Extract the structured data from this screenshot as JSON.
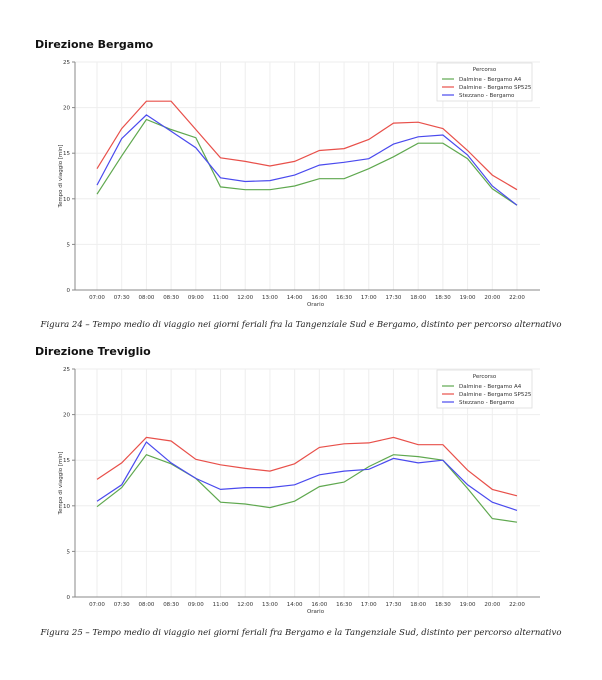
{
  "sections": [
    {
      "title": "Direzione Bergamo",
      "caption": "Figura 24 – Tempo medio di viaggio nei giorni feriali fra la Tangenziale Sud e Bergamo, distinto per percorso alternativo"
    },
    {
      "title": "Direzione Treviglio",
      "caption": "Figura 25 – Tempo medio di viaggio nei giorni feriali fra Bergamo e la Tangenziale Sud, distinto per percorso alternativo"
    }
  ],
  "chart_data": [
    {
      "type": "line",
      "title": "Direzione Bergamo",
      "xlabel": "Orario",
      "ylabel": "Tempo di viaggio [min]",
      "ylim": [
        0,
        25
      ],
      "yticks": [
        0,
        5,
        10,
        15,
        20,
        25
      ],
      "grid": true,
      "legend_title": "Percorso",
      "legend_position": "top-right",
      "categories": [
        "07:00",
        "07:30",
        "08:00",
        "08:30",
        "09:00",
        "11:00",
        "12:00",
        "13:00",
        "14:00",
        "16:00",
        "16:30",
        "17:00",
        "17:30",
        "18:00",
        "18:30",
        "19:00",
        "20:00",
        "22:00"
      ],
      "series": [
        {
          "name": "Dalmine - Bergamo A4",
          "color": "#5fa84f",
          "values": [
            10.5,
            14.7,
            18.7,
            17.6,
            16.7,
            11.3,
            11.0,
            11.0,
            11.4,
            12.2,
            12.2,
            13.3,
            14.6,
            16.1,
            16.1,
            14.4,
            11.1,
            9.3
          ]
        },
        {
          "name": "Dalmine - Bergamo SP525",
          "color": "#e8504a",
          "values": [
            13.3,
            17.7,
            20.7,
            20.7,
            17.6,
            14.5,
            14.1,
            13.6,
            14.1,
            15.3,
            15.5,
            16.5,
            18.3,
            18.4,
            17.7,
            15.3,
            12.6,
            11.0
          ]
        },
        {
          "name": "Stezzano - Bergamo",
          "color": "#4a4aee",
          "values": [
            11.5,
            16.6,
            19.2,
            17.4,
            15.6,
            12.3,
            11.9,
            12.0,
            12.6,
            13.7,
            14.0,
            14.4,
            16.0,
            16.8,
            17.0,
            14.8,
            11.4,
            9.3
          ]
        }
      ]
    },
    {
      "type": "line",
      "title": "Direzione Treviglio",
      "xlabel": "Orario",
      "ylabel": "Tempo di viaggio [min]",
      "ylim": [
        0,
        25
      ],
      "yticks": [
        0,
        5,
        10,
        15,
        20,
        25
      ],
      "grid": true,
      "legend_title": "Percorso",
      "legend_position": "top-right",
      "categories": [
        "07:00",
        "07:30",
        "08:00",
        "08:30",
        "09:00",
        "11:00",
        "12:00",
        "13:00",
        "14:00",
        "16:00",
        "16:30",
        "17:00",
        "17:30",
        "18:00",
        "18:30",
        "19:00",
        "20:00",
        "22:00"
      ],
      "series": [
        {
          "name": "Dalmine - Bergamo A4",
          "color": "#5fa84f",
          "values": [
            9.9,
            12.0,
            15.6,
            14.6,
            13.0,
            10.4,
            10.2,
            9.8,
            10.5,
            12.1,
            12.6,
            14.3,
            15.6,
            15.4,
            15.0,
            11.9,
            8.6,
            8.2
          ]
        },
        {
          "name": "Dalmine - Bergamo SP525",
          "color": "#e8504a",
          "values": [
            12.9,
            14.7,
            17.5,
            17.1,
            15.1,
            14.5,
            14.1,
            13.8,
            14.6,
            16.4,
            16.8,
            16.9,
            17.5,
            16.7,
            16.7,
            13.9,
            11.8,
            11.1
          ]
        },
        {
          "name": "Stezzano - Bergamo",
          "color": "#4a4aee",
          "values": [
            10.5,
            12.3,
            17.0,
            14.7,
            13.0,
            11.8,
            12.0,
            12.0,
            12.3,
            13.4,
            13.8,
            14.0,
            15.2,
            14.7,
            15.0,
            12.3,
            10.4,
            9.5
          ]
        }
      ]
    }
  ]
}
